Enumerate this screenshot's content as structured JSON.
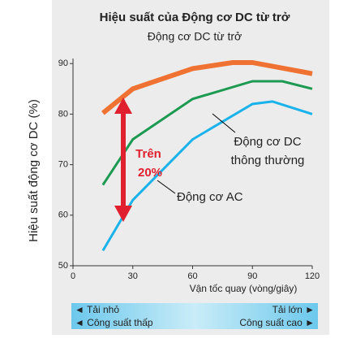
{
  "chart_data": {
    "type": "line",
    "title": "Hiệu suất của Động cơ DC từ trở",
    "subtitle": "Động cơ DC từ trở",
    "y_label": "Hiệu suất động cơ DC (%)",
    "x_label": "Vận tốc quay (vòng/giây)",
    "xlim": [
      0,
      120
    ],
    "xticks": [
      0,
      30,
      60,
      90,
      120
    ],
    "ylim": [
      50,
      91
    ],
    "yticks": [
      50,
      60,
      70,
      80,
      90
    ],
    "series": [
      {
        "name": "Động cơ DC từ trở",
        "color": "#f07232",
        "x": [
          15,
          30,
          60,
          80,
          90,
          120
        ],
        "values": [
          80.2,
          85,
          89,
          90.2,
          90.2,
          88
        ]
      },
      {
        "name": "Động cơ DC thông thường",
        "color": "#1d9a52",
        "x": [
          15,
          30,
          60,
          90,
          105,
          120
        ],
        "values": [
          66,
          75,
          83,
          86.5,
          86.5,
          85
        ]
      },
      {
        "name": "Động cơ AC",
        "color": "#1ab2ea",
        "x": [
          15,
          30,
          60,
          90,
          100,
          120
        ],
        "values": [
          53,
          63,
          75,
          82,
          82.5,
          80
        ]
      }
    ],
    "annotations": {
      "dc_label": [
        "Động cơ DC",
        "thông thường"
      ],
      "ac_label": "Động cơ AC",
      "gain": [
        "Trên",
        "20%"
      ]
    },
    "load_bar": {
      "left": [
        "◄ Tải nhỏ",
        "◄ Công suất thấp"
      ],
      "right": [
        "Tải lớn ►",
        "Công suất cao ►"
      ]
    }
  }
}
